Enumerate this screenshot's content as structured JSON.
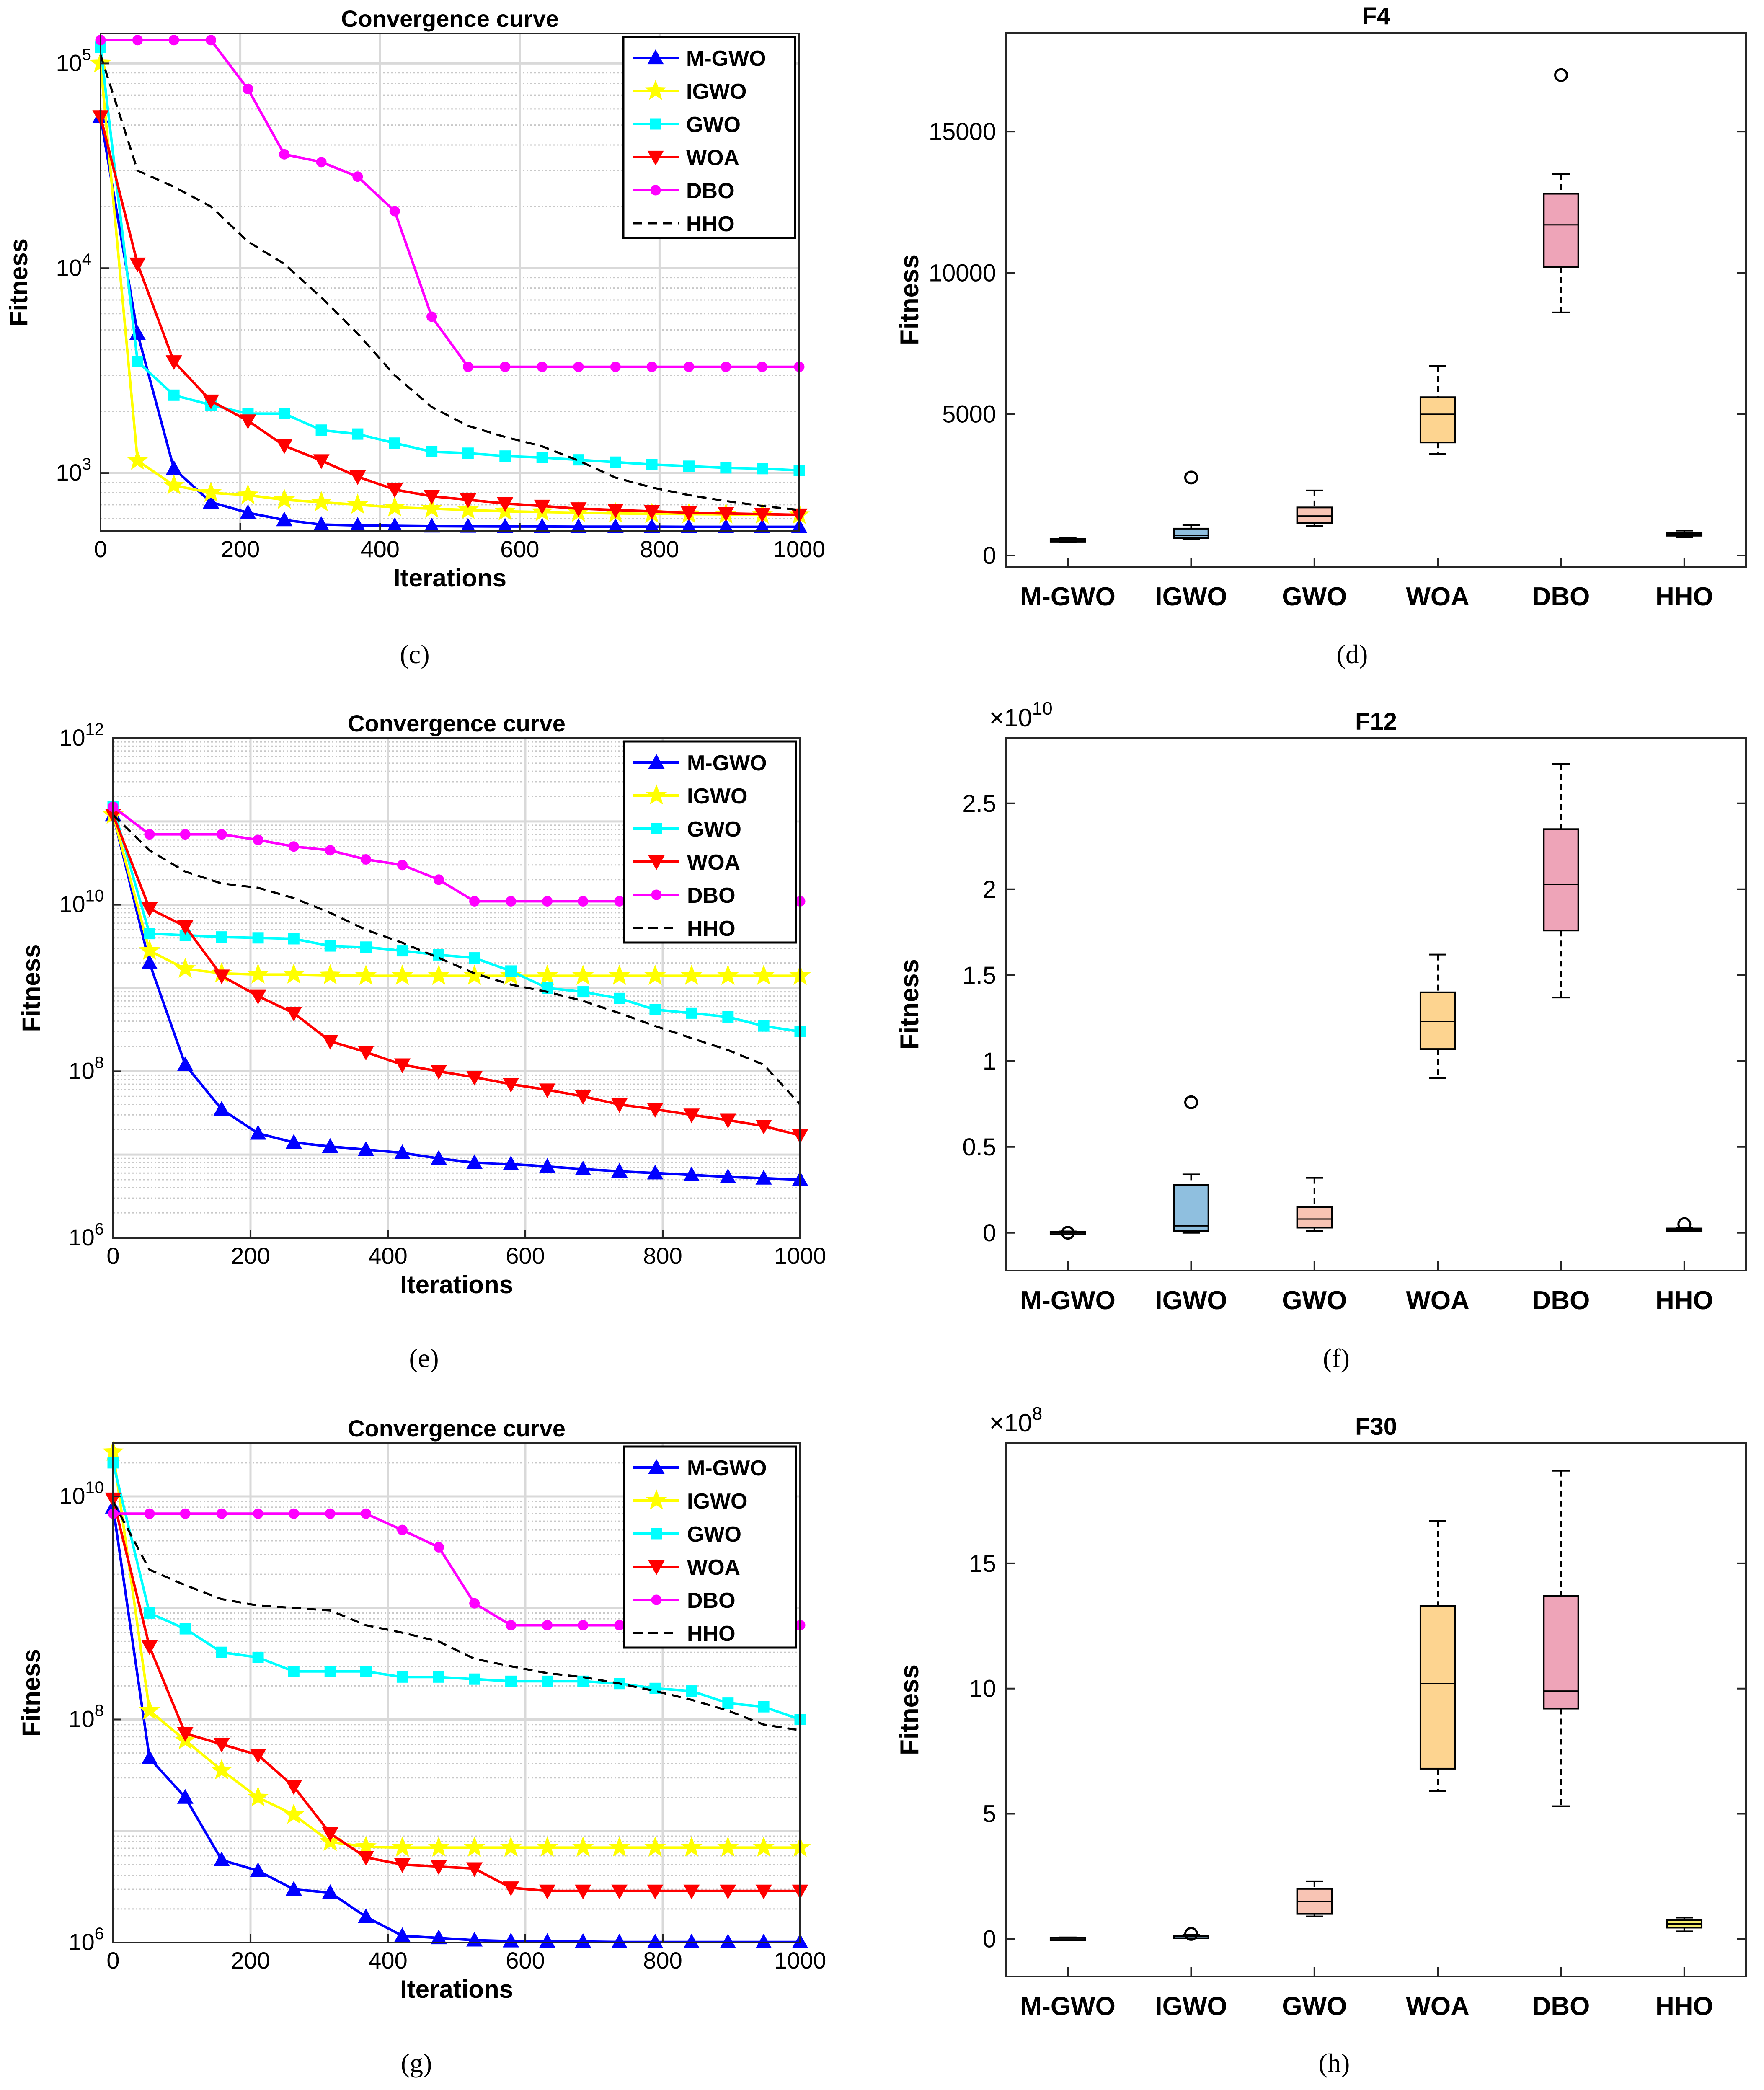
{
  "panels": {
    "c": "(c)",
    "d": "(d)",
    "e": "(e)",
    "f": "(f)",
    "g": "(g)",
    "h": "(h)"
  },
  "chart_data": [
    {
      "id": "c",
      "type": "line",
      "yscale": "log",
      "title": "Convergence curve",
      "xlabel": "Iterations",
      "ylabel": "Fitness",
      "xlim": [
        0,
        1000
      ],
      "ylim": [
        520,
        140000
      ],
      "xticks": [
        0,
        200,
        400,
        600,
        800,
        1000
      ],
      "ytick_exponents": [
        3,
        4,
        5
      ],
      "grid": true,
      "legend": "top-right",
      "x": [
        0,
        53,
        105,
        158,
        211,
        263,
        316,
        368,
        421,
        474,
        526,
        579,
        632,
        684,
        737,
        789,
        842,
        895,
        947,
        1000
      ],
      "series": [
        {
          "name": "M-GWO",
          "color": "#0000ff",
          "marker": "triangle-up",
          "values": [
            55000,
            4800,
            1050,
            720,
            640,
            590,
            560,
            555,
            552,
            550,
            549,
            548,
            548,
            547,
            547,
            547,
            546,
            546,
            546,
            546
          ]
        },
        {
          "name": "IGWO",
          "color": "#ffff00",
          "marker": "star",
          "values": [
            100000,
            1150,
            870,
            800,
            780,
            740,
            720,
            700,
            680,
            670,
            660,
            650,
            645,
            640,
            635,
            632,
            630,
            628,
            626,
            625
          ]
        },
        {
          "name": "GWO",
          "color": "#00ffff",
          "marker": "square",
          "values": [
            120000,
            3500,
            2400,
            2150,
            1950,
            1950,
            1620,
            1550,
            1400,
            1270,
            1250,
            1210,
            1190,
            1160,
            1130,
            1100,
            1080,
            1060,
            1050,
            1030
          ]
        },
        {
          "name": "WOA",
          "color": "#ff0000",
          "marker": "triangle-down",
          "values": [
            55000,
            10500,
            3500,
            2250,
            1800,
            1360,
            1150,
            960,
            830,
            770,
            740,
            710,
            690,
            670,
            660,
            650,
            640,
            635,
            630,
            625
          ]
        },
        {
          "name": "DBO",
          "color": "#ff00ff",
          "marker": "circle",
          "values": [
            130000,
            130000,
            130000,
            130000,
            75000,
            36000,
            33000,
            28000,
            19000,
            5800,
            3300,
            3300,
            3300,
            3300,
            3300,
            3300,
            3300,
            3300,
            3300,
            3300
          ]
        },
        {
          "name": "HHO",
          "color": "#000000",
          "marker": "none",
          "dash": true,
          "values": [
            110000,
            30000,
            25000,
            20000,
            13500,
            10500,
            7200,
            4800,
            3000,
            2100,
            1700,
            1500,
            1350,
            1150,
            950,
            850,
            780,
            730,
            690,
            660
          ]
        }
      ]
    },
    {
      "id": "d",
      "type": "box",
      "title": "F4",
      "xlabel": "",
      "ylabel": "Fitness",
      "ylim": [
        -400,
        18500
      ],
      "yticks": [
        0,
        5000,
        10000,
        15000
      ],
      "multiplier": "",
      "categories": [
        "M-GWO",
        "IGWO",
        "GWO",
        "WOA",
        "DBO",
        "HHO"
      ],
      "boxes": [
        {
          "color": "#222222",
          "wlo": 480,
          "q1": 510,
          "med": 545,
          "q3": 580,
          "whi": 610,
          "outliers": []
        },
        {
          "color": "#8fbfdf",
          "wlo": 580,
          "q1": 620,
          "med": 720,
          "q3": 950,
          "whi": 1080,
          "outliers": [
            2760
          ]
        },
        {
          "color": "#f8c4b4",
          "wlo": 1050,
          "q1": 1150,
          "med": 1400,
          "q3": 1700,
          "whi": 2300,
          "outliers": []
        },
        {
          "color": "#fdd490",
          "wlo": 3600,
          "q1": 4000,
          "med": 5000,
          "q3": 5600,
          "whi": 6700,
          "outliers": []
        },
        {
          "color": "#eea4b8",
          "wlo": 8600,
          "q1": 10200,
          "med": 11700,
          "q3": 12800,
          "whi": 13500,
          "outliers": [
            17000
          ]
        },
        {
          "color": "#f5ee6e",
          "wlo": 650,
          "q1": 700,
          "med": 740,
          "q3": 800,
          "whi": 880,
          "outliers": []
        }
      ]
    },
    {
      "id": "e",
      "type": "line",
      "yscale": "log",
      "title": "Convergence curve",
      "xlabel": "Iterations",
      "ylabel": "Fitness",
      "xlim": [
        0,
        1000
      ],
      "ylim": [
        1000000,
        1000000000000
      ],
      "xticks": [
        0,
        200,
        400,
        600,
        800,
        1000
      ],
      "ytick_exponents": [
        6,
        8,
        10,
        12
      ],
      "grid": true,
      "legend": "top-right",
      "x": [
        0,
        53,
        105,
        158,
        211,
        263,
        316,
        368,
        421,
        474,
        526,
        579,
        632,
        684,
        737,
        789,
        842,
        895,
        947,
        1000
      ],
      "series": [
        {
          "name": "M-GWO",
          "color": "#0000ff",
          "marker": "triangle-up",
          "values": [
            120000000000,
            2000000000,
            120000000,
            35000000,
            18000000,
            14000000,
            12500000,
            11500000,
            10500000,
            9000000,
            8000000,
            7700000,
            7200000,
            6700000,
            6300000,
            6000000,
            5700000,
            5400000,
            5200000,
            5000000
          ]
        },
        {
          "name": "IGWO",
          "color": "#ffff00",
          "marker": "star",
          "values": [
            120000000000,
            2800000000,
            1700000000,
            1500000000,
            1450000000,
            1450000000,
            1420000000,
            1400000000,
            1400000000,
            1400000000,
            1400000000,
            1400000000,
            1400000000,
            1400000000,
            1400000000,
            1400000000,
            1400000000,
            1400000000,
            1400000000,
            1400000000
          ]
        },
        {
          "name": "GWO",
          "color": "#00ffff",
          "marker": "square",
          "values": [
            150000000000,
            4500000000,
            4300000000,
            4100000000,
            4000000000,
            3900000000,
            3200000000,
            3100000000,
            2800000000,
            2500000000,
            2300000000,
            1600000000,
            1000000000,
            900000000,
            750000000,
            550000000,
            500000000,
            450000000,
            350000000,
            300000000
          ]
        },
        {
          "name": "WOA",
          "color": "#ff0000",
          "marker": "triangle-down",
          "values": [
            120000000000,
            9000000000,
            5500000000,
            1400000000,
            800000000,
            500000000,
            230000000,
            170000000,
            120000000,
            100000000,
            85000000,
            70000000,
            60000000,
            50000000,
            40000000,
            35000000,
            30000000,
            26000000,
            22000000,
            17000000
          ]
        },
        {
          "name": "DBO",
          "color": "#ff00ff",
          "marker": "circle",
          "values": [
            150000000000,
            70000000000,
            70000000000,
            70000000000,
            60000000000,
            50000000000,
            45000000000,
            35000000000,
            30000000000,
            20000000000,
            11000000000,
            11000000000,
            11000000000,
            11000000000,
            11000000000,
            11000000000,
            11000000000,
            11000000000,
            11000000000,
            11000000000
          ]
        },
        {
          "name": "HHO",
          "color": "#000000",
          "marker": "none",
          "dash": true,
          "values": [
            120000000000,
            45000000000,
            25000000000,
            18000000000,
            16000000000,
            12000000000,
            8000000000,
            5000000000,
            3500000000,
            2300000000,
            1500000000,
            1100000000,
            900000000,
            700000000,
            500000000,
            350000000,
            250000000,
            180000000,
            120000000,
            40000000
          ]
        }
      ]
    },
    {
      "id": "f",
      "type": "box",
      "title": "F12",
      "xlabel": "",
      "ylabel": "Fitness",
      "ylim": [
        -2.2,
        28.8
      ],
      "yticks": [
        0,
        5,
        10,
        15,
        20,
        25
      ],
      "ytick_labels": [
        "0",
        "0.5",
        "1",
        "1.5",
        "2",
        "2.5"
      ],
      "multiplier": "×10",
      "multiplier_exp": "10",
      "categories": [
        "M-GWO",
        "IGWO",
        "GWO",
        "WOA",
        "DBO",
        "HHO"
      ],
      "boxes": [
        {
          "color": "#222222",
          "wlo": 0.0,
          "q1": 0.0,
          "med": 0.0,
          "q3": 0.05,
          "whi": 0.08,
          "outliers": [
            0.0
          ]
        },
        {
          "color": "#8fbfdf",
          "wlo": 0.0,
          "q1": 0.1,
          "med": 0.4,
          "q3": 2.8,
          "whi": 3.4,
          "outliers": [
            7.6
          ]
        },
        {
          "color": "#f8c4b4",
          "wlo": 0.1,
          "q1": 0.3,
          "med": 0.8,
          "q3": 1.5,
          "whi": 3.2,
          "outliers": []
        },
        {
          "color": "#fdd490",
          "wlo": 9.0,
          "q1": 10.7,
          "med": 12.3,
          "q3": 14.0,
          "whi": 16.2,
          "outliers": []
        },
        {
          "color": "#eea4b8",
          "wlo": 13.7,
          "q1": 17.6,
          "med": 20.3,
          "q3": 23.5,
          "whi": 27.3,
          "outliers": []
        },
        {
          "color": "#f5ee6e",
          "wlo": 0.1,
          "q1": 0.15,
          "med": 0.2,
          "q3": 0.25,
          "whi": 0.3,
          "outliers": [
            0.5
          ]
        }
      ]
    },
    {
      "id": "g",
      "type": "line",
      "yscale": "log",
      "title": "Convergence curve",
      "xlabel": "Iterations",
      "ylabel": "Fitness",
      "xlim": [
        0,
        1000
      ],
      "ylim": [
        1000000,
        30000000000
      ],
      "xticks": [
        0,
        200,
        400,
        600,
        800,
        1000
      ],
      "ytick_exponents": [
        6,
        8,
        10
      ],
      "grid": true,
      "legend": "top-right",
      "x": [
        0,
        53,
        105,
        158,
        211,
        263,
        316,
        368,
        421,
        474,
        526,
        579,
        632,
        684,
        737,
        789,
        842,
        895,
        947,
        1000
      ],
      "series": [
        {
          "name": "M-GWO",
          "color": "#0000ff",
          "marker": "triangle-up",
          "values": [
            8000000000,
            45000000,
            20000000,
            5500000,
            4400000,
            3000000,
            2800000,
            1700000,
            1150000,
            1100000,
            1050000,
            1030000,
            1020000,
            1020000,
            1010000,
            1010000,
            1010000,
            1010000,
            1010000,
            1010000
          ]
        },
        {
          "name": "IGWO",
          "color": "#ffff00",
          "marker": "star",
          "values": [
            25000000000,
            120000000,
            65000000,
            35000000,
            20000000,
            14000000,
            8000000,
            7200000,
            7100000,
            7100000,
            7100000,
            7100000,
            7100000,
            7100000,
            7100000,
            7100000,
            7100000,
            7100000,
            7100000,
            7100000
          ]
        },
        {
          "name": "GWO",
          "color": "#00ffff",
          "marker": "square",
          "values": [
            20000000000,
            900000000,
            650000000,
            400000000,
            360000000,
            270000000,
            270000000,
            270000000,
            240000000,
            240000000,
            230000000,
            220000000,
            220000000,
            220000000,
            210000000,
            190000000,
            180000000,
            140000000,
            130000000,
            100000000
          ]
        },
        {
          "name": "WOA",
          "color": "#ff0000",
          "marker": "triangle-down",
          "values": [
            9500000000,
            450000000,
            75000000,
            60000000,
            48000000,
            25000000,
            9500000,
            5800000,
            5000000,
            4800000,
            4600000,
            3100000,
            2900000,
            2900000,
            2900000,
            2900000,
            2900000,
            2900000,
            2900000,
            2900000
          ]
        },
        {
          "name": "DBO",
          "color": "#ff00ff",
          "marker": "circle",
          "values": [
            7000000000,
            7000000000,
            7000000000,
            7000000000,
            7000000000,
            7000000000,
            7000000000,
            7000000000,
            5000000000,
            3500000000,
            1100000000,
            700000000,
            700000000,
            700000000,
            700000000,
            700000000,
            700000000,
            700000000,
            700000000,
            700000000
          ]
        },
        {
          "name": "HHO",
          "color": "#000000",
          "marker": "none",
          "dash": true,
          "values": [
            9000000000,
            2200000000,
            1600000000,
            1200000000,
            1050000000,
            1000000000,
            950000000,
            700000000,
            600000000,
            500000000,
            350000000,
            300000000,
            260000000,
            240000000,
            210000000,
            180000000,
            150000000,
            120000000,
            90000000,
            80000000
          ]
        }
      ]
    },
    {
      "id": "h",
      "type": "box",
      "title": "F30",
      "xlabel": "",
      "ylabel": "Fitness",
      "ylim": [
        -1.5,
        19.8
      ],
      "yticks": [
        0,
        5,
        10,
        15
      ],
      "ytick_labels": [
        "0",
        "5",
        "10",
        "15"
      ],
      "multiplier": "×10",
      "multiplier_exp": "8",
      "categories": [
        "M-GWO",
        "IGWO",
        "GWO",
        "WOA",
        "DBO",
        "HHO"
      ],
      "boxes": [
        {
          "color": "#222222",
          "wlo": 0.02,
          "q1": 0.03,
          "med": 0.04,
          "q3": 0.05,
          "whi": 0.06,
          "outliers": []
        },
        {
          "color": "#8fbfdf",
          "wlo": 0.05,
          "q1": 0.07,
          "med": 0.1,
          "q3": 0.13,
          "whi": 0.16,
          "outliers": [
            0.2
          ]
        },
        {
          "color": "#f8c4b4",
          "wlo": 0.9,
          "q1": 1.0,
          "med": 1.5,
          "q3": 2.0,
          "whi": 2.3,
          "outliers": []
        },
        {
          "color": "#fdd490",
          "wlo": 5.9,
          "q1": 6.8,
          "med": 10.2,
          "q3": 13.3,
          "whi": 16.7,
          "outliers": []
        },
        {
          "color": "#eea4b8",
          "wlo": 5.3,
          "q1": 9.2,
          "med": 9.9,
          "q3": 13.7,
          "whi": 18.7,
          "outliers": []
        },
        {
          "color": "#f5ee6e",
          "wlo": 0.3,
          "q1": 0.45,
          "med": 0.6,
          "q3": 0.75,
          "whi": 0.85,
          "outliers": []
        }
      ]
    }
  ]
}
